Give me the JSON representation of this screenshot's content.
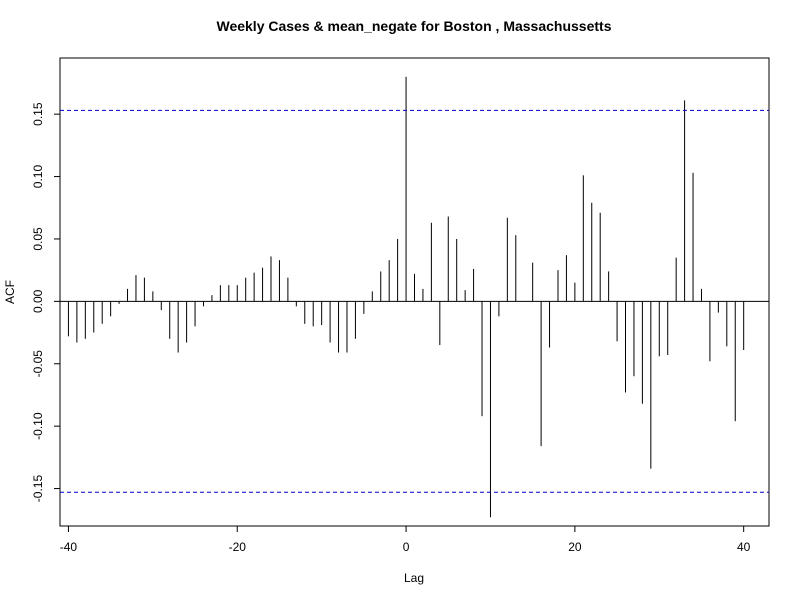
{
  "chart_data": {
    "type": "bar",
    "title": "Weekly Cases & mean_negate for Boston , Massachussetts",
    "xlabel": "Lag",
    "ylabel": "ACF",
    "xlim": [
      -41,
      43
    ],
    "ylim": [
      -0.18,
      0.195
    ],
    "xticks": [
      -40,
      -20,
      0,
      20,
      40
    ],
    "yticks": [
      -0.15,
      -0.1,
      -0.05,
      0.0,
      0.05,
      0.1,
      0.15
    ],
    "ytick_labels": [
      "-0.15",
      "-0.10",
      "-0.05",
      "0.00",
      "0.05",
      "0.10",
      "0.15"
    ],
    "confidence_bound": 0.153,
    "confidence_color": "#0000cc",
    "bar_color": "#000000",
    "lags": [
      -40,
      -39,
      -38,
      -37,
      -36,
      -35,
      -34,
      -33,
      -32,
      -31,
      -30,
      -29,
      -28,
      -27,
      -26,
      -25,
      -24,
      -23,
      -22,
      -21,
      -20,
      -19,
      -18,
      -17,
      -16,
      -15,
      -14,
      -13,
      -12,
      -11,
      -10,
      -9,
      -8,
      -7,
      -6,
      -5,
      -4,
      -3,
      -2,
      -1,
      0,
      1,
      2,
      3,
      4,
      5,
      6,
      7,
      8,
      9,
      10,
      11,
      12,
      13,
      14,
      15,
      16,
      17,
      18,
      19,
      20,
      21,
      22,
      23,
      24,
      25,
      26,
      27,
      28,
      29,
      30,
      31,
      32,
      33,
      34,
      35,
      36,
      37,
      38,
      39,
      40
    ],
    "acf": [
      -0.028,
      -0.033,
      -0.03,
      -0.025,
      -0.018,
      -0.012,
      -0.002,
      0.01,
      0.021,
      0.019,
      0.008,
      -0.007,
      -0.03,
      -0.041,
      -0.033,
      -0.02,
      -0.004,
      0.005,
      0.013,
      0.013,
      0.013,
      0.019,
      0.023,
      0.027,
      0.036,
      0.033,
      0.019,
      -0.004,
      -0.018,
      -0.02,
      -0.019,
      -0.033,
      -0.041,
      -0.041,
      -0.03,
      -0.01,
      0.008,
      0.024,
      0.033,
      0.05,
      0.18,
      0.022,
      0.01,
      0.063,
      -0.035,
      0.068,
      0.05,
      0.009,
      0.026,
      -0.092,
      -0.173,
      -0.012,
      0.067,
      0.053,
      0.0,
      0.031,
      -0.116,
      -0.037,
      0.025,
      0.037,
      0.015,
      0.101,
      0.079,
      0.071,
      0.024,
      -0.032,
      -0.073,
      -0.06,
      -0.082,
      -0.134,
      -0.044,
      -0.043,
      0.035,
      0.161,
      0.103,
      0.01,
      -0.048,
      -0.009,
      -0.036,
      -0.096,
      -0.039
    ]
  }
}
